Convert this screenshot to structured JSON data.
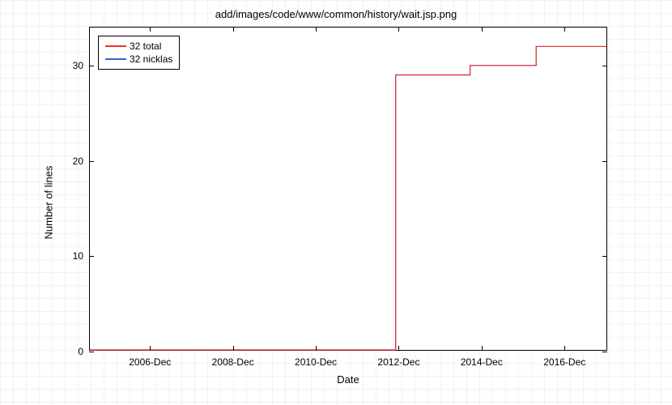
{
  "chart": {
    "type": "line-step",
    "title": "add/images/code/www/common/history/wait.jsp.png",
    "title_fontsize": 13,
    "xlabel": "Date",
    "ylabel": "Number of lines",
    "label_fontsize": 13,
    "tick_fontsize": 12,
    "background_color": "#ffffff",
    "plot_background": "#ffffff",
    "border_color": "#000000",
    "grid_background_pattern": "#f2f2f2",
    "x_axis": {
      "type": "time",
      "min_year": 2005.5,
      "max_year": 2018.0,
      "ticks": [
        {
          "year": 2006.95,
          "label": "2006-Dec"
        },
        {
          "year": 2008.95,
          "label": "2008-Dec"
        },
        {
          "year": 2010.95,
          "label": "2010-Dec"
        },
        {
          "year": 2012.95,
          "label": "2012-Dec"
        },
        {
          "year": 2014.95,
          "label": "2014-Dec"
        },
        {
          "year": 2016.95,
          "label": "2016-Dec"
        }
      ],
      "minor_ticks_per_major": 1
    },
    "y_axis": {
      "min": 0,
      "max": 34,
      "ticks": [
        0,
        10,
        20,
        30
      ]
    },
    "legend": {
      "position": "top-left",
      "border_color": "#000000",
      "items": [
        {
          "label": "32 total",
          "color": "#ee3333"
        },
        {
          "label": "32 nicklas",
          "color": "#3366cc"
        }
      ]
    },
    "series": [
      {
        "name": "total",
        "color": "#ee3333",
        "line_width": 1.2,
        "step": "post",
        "points": [
          {
            "x": 2005.5,
            "y": 0
          },
          {
            "x": 2012.9,
            "y": 0
          },
          {
            "x": 2012.9,
            "y": 29
          },
          {
            "x": 2014.7,
            "y": 29
          },
          {
            "x": 2014.7,
            "y": 30
          },
          {
            "x": 2016.3,
            "y": 30
          },
          {
            "x": 2016.3,
            "y": 32
          },
          {
            "x": 2018.0,
            "y": 32
          }
        ]
      },
      {
        "name": "nicklas",
        "color": "#3366cc",
        "line_width": 1.2,
        "step": "post",
        "points": [
          {
            "x": 2005.5,
            "y": 0
          },
          {
            "x": 2012.9,
            "y": 0
          },
          {
            "x": 2012.9,
            "y": 29
          },
          {
            "x": 2014.7,
            "y": 29
          },
          {
            "x": 2014.7,
            "y": 30
          },
          {
            "x": 2016.3,
            "y": 30
          },
          {
            "x": 2016.3,
            "y": 32
          },
          {
            "x": 2018.0,
            "y": 32
          }
        ]
      }
    ]
  }
}
